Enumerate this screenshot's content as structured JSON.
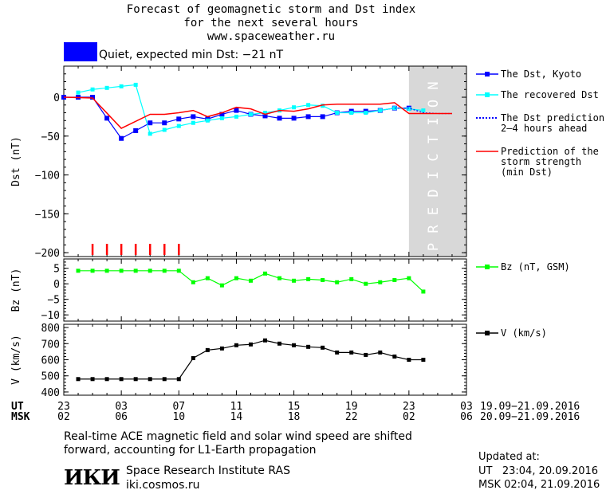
{
  "header": {
    "title_lines": [
      "Forecast of geomagnetic storm and Dst index",
      "for the next several hours",
      "www.spaceweather.ru"
    ],
    "status_color": "#0000ff",
    "status_text": "Quiet, expected min Dst: −21 nT"
  },
  "chart_data": [
    {
      "type": "line",
      "ylabel": "Dst (nT)",
      "ylim": [
        -205,
        40
      ],
      "yticks": [
        0,
        -50,
        -100,
        -150,
        -200
      ],
      "xlim": [
        0,
        28
      ],
      "prediction_region": [
        24,
        28
      ],
      "prediction_text": "PREDICTION",
      "series": [
        {
          "name": "The Dst, Kyoto",
          "color": "#0000ff",
          "x": [
            0,
            1,
            2,
            3,
            4,
            5,
            6,
            7,
            8,
            9,
            10,
            11,
            12,
            13,
            14,
            15,
            16,
            17,
            18,
            19,
            20,
            21,
            22,
            23,
            24
          ],
          "y": [
            0,
            0,
            0,
            -27,
            -53,
            -43,
            -33,
            -33,
            -28,
            -25,
            -28,
            -22,
            -17,
            -22,
            -24,
            -27,
            -27,
            -25,
            -25,
            -20,
            -18,
            -18,
            -17,
            -14,
            -14
          ]
        },
        {
          "name": "The recovered Dst",
          "color": "#00ffff",
          "x": [
            1,
            2,
            3,
            4,
            5,
            6,
            7,
            8,
            9,
            10,
            11,
            12,
            13,
            14,
            15,
            16,
            17,
            18,
            19,
            20,
            21,
            22,
            23,
            24,
            25
          ],
          "y": [
            6,
            10,
            12,
            14,
            16,
            -47,
            -42,
            -37,
            -33,
            -30,
            -27,
            -25,
            -22,
            -20,
            -17,
            -13,
            -10,
            -11,
            -20,
            -20,
            -20,
            -17,
            -14,
            -15,
            -17
          ]
        },
        {
          "name": "The Dst prediction\n2–4 hours ahead",
          "color": "#0000ff",
          "x": [
            23,
            24,
            25,
            26,
            27
          ],
          "y": [
            -14,
            -14,
            -20,
            -21,
            -21
          ]
        },
        {
          "name": "Prediction of the\nstorm strength\n(min Dst)",
          "color": "#ff0000",
          "x": [
            0,
            2,
            4,
            6,
            7,
            8,
            9,
            10,
            11,
            12,
            13,
            14,
            15,
            16,
            17,
            18,
            19,
            20,
            21,
            22,
            23,
            24,
            25,
            26,
            27
          ],
          "y": [
            0,
            -1,
            -40,
            -22,
            -22,
            -20,
            -17,
            -25,
            -20,
            -13,
            -15,
            -22,
            -17,
            -18,
            -15,
            -10,
            -9,
            -9,
            -9,
            -9,
            -7,
            -21,
            -21,
            -21,
            -21
          ]
        }
      ],
      "markers_red_ticks_x": [
        2,
        3,
        4,
        5,
        6,
        7,
        8
      ]
    },
    {
      "type": "line",
      "ylabel": "Bz (nT)",
      "ylim": [
        -12,
        8
      ],
      "yticks": [
        5,
        0,
        -5,
        -10
      ],
      "xlim": [
        0,
        28
      ],
      "series": [
        {
          "name": "Bz (nT, GSM)",
          "color": "#00ff00",
          "x": [
            1,
            2,
            3,
            4,
            5,
            6,
            7,
            8,
            9,
            10,
            11,
            12,
            13,
            14,
            15,
            16,
            17,
            18,
            19,
            20,
            21,
            22,
            23,
            24,
            25
          ],
          "y": [
            4.2,
            4.2,
            4.2,
            4.2,
            4.2,
            4.2,
            4.2,
            4.2,
            0.5,
            1.8,
            -0.5,
            1.8,
            1.0,
            3.3,
            1.8,
            1.0,
            1.5,
            1.2,
            0.5,
            1.5,
            0.0,
            0.5,
            1.2,
            1.8,
            -2.5
          ]
        }
      ]
    },
    {
      "type": "line",
      "ylabel": "V (km/s)",
      "ylim": [
        380,
        820
      ],
      "yticks": [
        800,
        700,
        600,
        500,
        400
      ],
      "xlim": [
        0,
        28
      ],
      "series": [
        {
          "name": "V (km/s)",
          "color": "#000000",
          "x": [
            1,
            2,
            3,
            4,
            5,
            6,
            7,
            8,
            9,
            10,
            11,
            12,
            13,
            14,
            15,
            16,
            17,
            18,
            19,
            20,
            21,
            22,
            23,
            24,
            25
          ],
          "y": [
            480,
            480,
            480,
            480,
            480,
            480,
            480,
            480,
            610,
            660,
            670,
            690,
            695,
            720,
            700,
            690,
            680,
            675,
            645,
            645,
            630,
            645,
            620,
            600,
            600
          ]
        }
      ]
    }
  ],
  "axes": {
    "ut_label": "UT",
    "msk_label": "MSK",
    "ut_ticks": [
      "23",
      "03",
      "07",
      "11",
      "15",
      "19",
      "23",
      "03"
    ],
    "msk_ticks": [
      "02",
      "06",
      "10",
      "14",
      "18",
      "22",
      "02",
      "06"
    ],
    "ut_range": "19.09−21.09.2016",
    "msk_range": "20.09−21.09.2016"
  },
  "footer": {
    "note_lines": [
      "Real-time ACE magnetic field and solar wind speed are shifted",
      "forward, accounting for L1-Earth propagation"
    ],
    "logo_text": "ИКИ",
    "institute": "Space Research Institute RAS",
    "site": "iki.cosmos.ru",
    "updated_label": "Updated at:",
    "updated_ut": "UT   23:04, 20.09.2016",
    "updated_msk": "MSK 02:04, 21.09.2016"
  }
}
